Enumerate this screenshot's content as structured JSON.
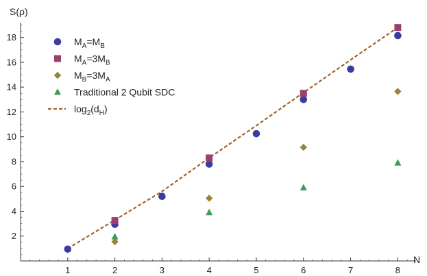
{
  "chart_data": {
    "type": "scatter",
    "xlabel": "N",
    "ylabel": "S(ρ)",
    "xlim": [
      0,
      8.3
    ],
    "ylim": [
      0,
      19.2
    ],
    "xticks": [
      1,
      2,
      3,
      4,
      5,
      6,
      7,
      8
    ],
    "yticks": [
      2,
      4,
      6,
      8,
      10,
      12,
      14,
      16,
      18
    ],
    "legend_position": "top-left",
    "series": [
      {
        "name": "M_A=M_B",
        "label_main": "M",
        "label_parts": [
          [
            "M",
            ""
          ],
          [
            "A",
            "sub"
          ],
          [
            "=M",
            ""
          ],
          [
            "B",
            "sub"
          ]
        ],
        "marker": "circle",
        "color": "#3b3d9e",
        "points": [
          [
            1,
            0.95
          ],
          [
            2,
            2.95
          ],
          [
            3,
            5.2
          ],
          [
            4,
            7.8
          ],
          [
            5,
            10.25
          ],
          [
            6,
            13.0
          ],
          [
            7,
            15.45
          ],
          [
            8,
            18.15
          ]
        ]
      },
      {
        "name": "M_A=3M_B",
        "label_parts": [
          [
            "M",
            ""
          ],
          [
            "A",
            "sub"
          ],
          [
            "=3M",
            ""
          ],
          [
            "B",
            "sub"
          ]
        ],
        "marker": "square",
        "color": "#9c3f6e",
        "points": [
          [
            2,
            3.25
          ],
          [
            4,
            8.3
          ],
          [
            6,
            13.5
          ],
          [
            8,
            18.8
          ]
        ]
      },
      {
        "name": "M_B=3M_A",
        "label_parts": [
          [
            "M",
            ""
          ],
          [
            "B",
            "sub"
          ],
          [
            "=3M",
            ""
          ],
          [
            "A",
            "sub"
          ]
        ],
        "marker": "diamond",
        "color": "#9a8433",
        "points": [
          [
            2,
            1.55
          ],
          [
            4,
            5.05
          ],
          [
            6,
            9.15
          ],
          [
            8,
            13.65
          ]
        ]
      },
      {
        "name": "Traditional 2 Qubit SDC",
        "label_parts": [
          [
            "Traditional 2 Qubit SDC",
            ""
          ]
        ],
        "marker": "triangle",
        "color": "#3f9a55",
        "points": [
          [
            2,
            1.95
          ],
          [
            4,
            3.9
          ],
          [
            6,
            5.9
          ],
          [
            8,
            7.9
          ]
        ]
      },
      {
        "name": "log_2(d_H)",
        "label_parts": [
          [
            "log",
            ""
          ],
          [
            "2",
            "sub"
          ],
          [
            "(d",
            ""
          ],
          [
            "H",
            "sub"
          ],
          [
            ")",
            ""
          ]
        ],
        "marker": "dashed-line",
        "color": "#a0622c",
        "line": [
          [
            1,
            1.0
          ],
          [
            2,
            3.3
          ],
          [
            3,
            5.6
          ],
          [
            4,
            8.3
          ],
          [
            5,
            10.9
          ],
          [
            6,
            13.55
          ],
          [
            7,
            16.2
          ],
          [
            8,
            18.8
          ]
        ]
      }
    ]
  }
}
